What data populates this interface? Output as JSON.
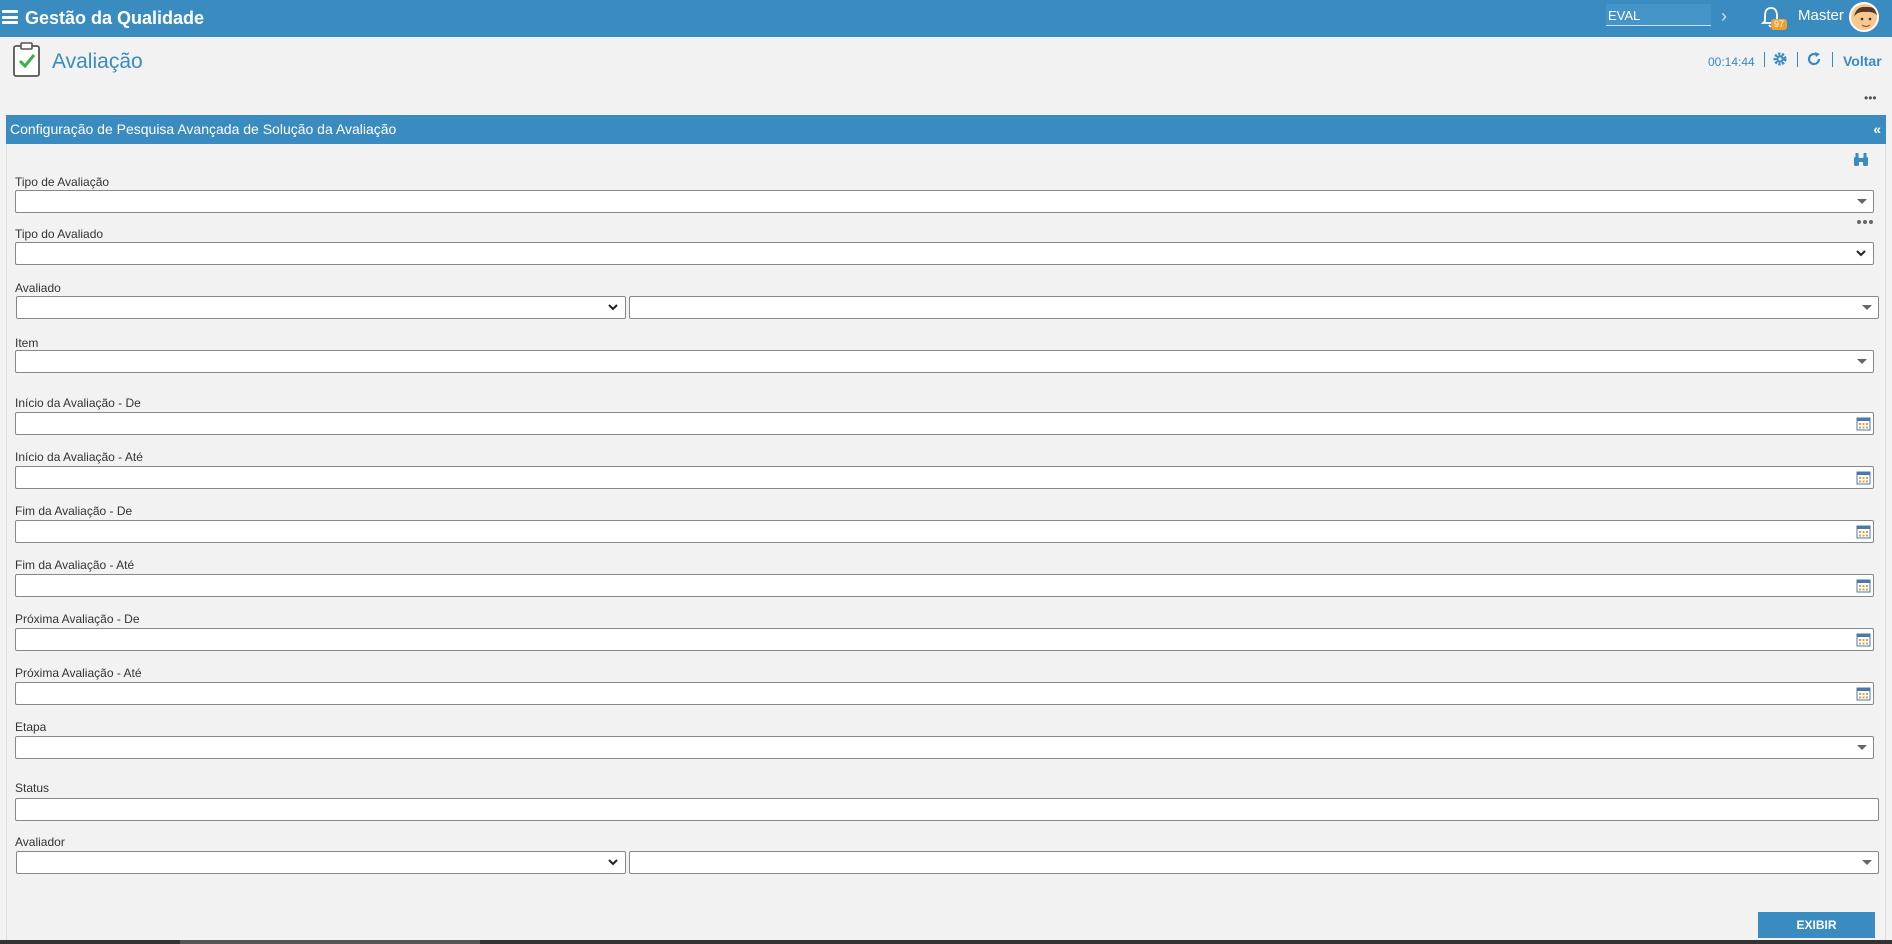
{
  "header": {
    "app_title": "Gestão da Qualidade",
    "module_value": "EVAL",
    "notifications_count": "97",
    "user_name": "Master"
  },
  "page": {
    "title": "Avaliação",
    "timer": "00:14:44",
    "back_label": "Voltar"
  },
  "panel": {
    "title": "Configuração de Pesquisa Avançada de Solução da Avaliação",
    "collapse_label": "«"
  },
  "fields": {
    "tipo_avaliacao": "Tipo de Avaliação",
    "tipo_avaliado": "Tipo do Avaliado",
    "avaliado": "Avaliado",
    "item": "Item",
    "inicio_de": "Início da Avaliação - De",
    "inicio_ate": "Início da Avaliação - Até",
    "fim_de": "Fim da Avaliação - De",
    "fim_ate": "Fim da Avaliação - Até",
    "proxima_de": "Próxima Avaliação - De",
    "proxima_ate": "Próxima Avaliação - Até",
    "etapa": "Etapa",
    "status": "Status",
    "avaliador": "Avaliador"
  },
  "actions": {
    "exibir_label": "EXIBIR"
  },
  "icons": {
    "menu": "hamburger-icon",
    "bell": "bell-icon",
    "gear": "gear-icon",
    "refresh": "refresh-icon",
    "binoculars": "binoculars-icon",
    "calendar": "calendar-icon"
  },
  "colors": {
    "primary": "#3a8bc0",
    "badge": "#f0a030"
  }
}
